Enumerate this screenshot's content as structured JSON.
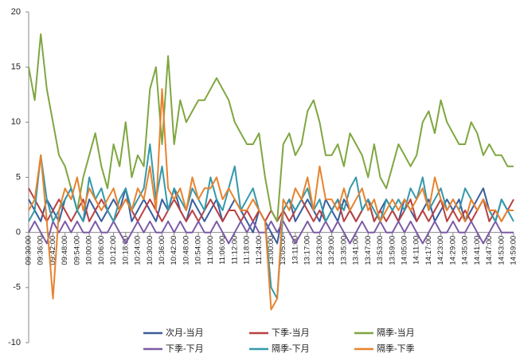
{
  "chart_data": {
    "type": "line",
    "categories": [
      "09:30:00",
      null,
      "09:36:00",
      null,
      "09:42:00",
      null,
      "09:48:00",
      null,
      "09:54:00",
      null,
      "10:00:00",
      null,
      "10:06:00",
      null,
      "10:12:00",
      null,
      "10:18:00",
      null,
      "10:24:00",
      null,
      "10:30:00",
      null,
      "10:36:00",
      null,
      "10:42:00",
      null,
      "10:48:00",
      null,
      "10:54:00",
      null,
      "11:00:00",
      null,
      "11:06:00",
      null,
      "11:12:00",
      null,
      "11:18:00",
      null,
      "11:24:00",
      null,
      "13:00:00",
      null,
      "13:05:00",
      null,
      "13:11:00",
      null,
      "13:17:00",
      null,
      "13:23:00",
      null,
      "13:29:00",
      null,
      "13:35:00",
      null,
      "13:41:00",
      null,
      "13:47:00",
      null,
      "13:53:00",
      null,
      "13:59:00",
      null,
      "14:05:00",
      null,
      "14:11:00",
      null,
      "14:17:00",
      null,
      "14:23:00",
      null,
      "14:29:00",
      null,
      "14:35:00",
      null,
      "14:41:00",
      null,
      "14:47:00",
      null,
      "14:53:00",
      null,
      "14:59:00"
    ],
    "series": [
      {
        "name": "次月-当月",
        "color": "#3a5d9c",
        "values": [
          3,
          2,
          1,
          3,
          2,
          1,
          3,
          4,
          2,
          1,
          3,
          2,
          1,
          2,
          3,
          2,
          4,
          1,
          2,
          3,
          2,
          1,
          3,
          2,
          4,
          2,
          1,
          3,
          2,
          1,
          2,
          3,
          1,
          2,
          3,
          2,
          1,
          0,
          2,
          1,
          0,
          -1,
          2,
          3,
          1,
          2,
          3,
          2,
          1,
          3,
          2,
          1,
          3,
          2,
          1,
          2,
          3,
          1,
          2,
          3,
          2,
          1,
          3,
          2,
          1,
          2,
          3,
          1,
          2,
          3,
          2,
          3,
          1,
          2,
          3,
          4,
          2,
          1,
          3,
          2,
          2
        ]
      },
      {
        "name": "下季-当月",
        "color": "#b94040",
        "values": [
          4,
          3,
          2,
          1,
          2,
          3,
          2,
          1,
          2,
          3,
          1,
          2,
          3,
          2,
          1,
          2,
          3,
          2,
          1,
          2,
          3,
          2,
          1,
          2,
          3,
          2,
          1,
          2,
          1,
          2,
          3,
          2,
          1,
          2,
          2,
          1,
          2,
          1,
          2,
          1,
          2,
          1,
          2,
          1,
          2,
          3,
          2,
          1,
          2,
          1,
          2,
          3,
          1,
          2,
          1,
          2,
          3,
          1,
          2,
          1,
          2,
          1,
          2,
          3,
          1,
          2,
          1,
          2,
          3,
          1,
          2,
          1,
          2,
          1,
          2,
          3,
          1,
          2,
          1,
          2,
          3
        ]
      },
      {
        "name": "隔季-当月",
        "color": "#7fa640",
        "values": [
          15,
          12,
          18,
          13,
          10,
          7,
          6,
          4,
          2,
          5,
          7,
          9,
          6,
          4,
          8,
          6,
          10,
          5,
          7,
          6,
          13,
          15,
          8,
          16,
          8,
          12,
          10,
          11,
          12,
          12,
          13,
          14,
          13,
          12,
          10,
          9,
          8,
          8,
          9,
          5,
          2,
          1,
          8,
          9,
          7,
          8,
          11,
          12,
          10,
          7,
          7,
          8,
          6,
          9,
          8,
          7,
          5,
          8,
          5,
          4,
          6,
          8,
          7,
          6,
          7,
          10,
          11,
          9,
          12,
          10,
          9,
          8,
          8,
          10,
          9,
          7,
          8,
          7,
          7,
          6,
          6
        ]
      },
      {
        "name": "下季-下月",
        "color": "#7b5aa6",
        "values": [
          0,
          1,
          0,
          -1,
          1,
          0,
          1,
          0,
          1,
          0,
          0,
          1,
          0,
          0,
          1,
          0,
          -1,
          0,
          1,
          0,
          1,
          0,
          0,
          1,
          0,
          1,
          0,
          0,
          1,
          0,
          0,
          1,
          0,
          -1,
          0,
          1,
          0,
          1,
          0,
          0,
          1,
          0,
          1,
          0,
          -1,
          0,
          1,
          0,
          0,
          1,
          0,
          1,
          0,
          -1,
          0,
          1,
          0,
          0,
          1,
          0,
          0,
          1,
          0,
          1,
          0,
          -1,
          0,
          1,
          0,
          0,
          1,
          0,
          0,
          1,
          0,
          -1,
          0,
          1,
          0,
          0,
          0
        ]
      },
      {
        "name": "隔季-下月",
        "color": "#3399aa",
        "values": [
          1,
          2,
          7,
          3,
          1,
          2,
          3,
          4,
          2,
          1,
          5,
          3,
          4,
          2,
          1,
          3,
          4,
          2,
          3,
          4,
          8,
          3,
          6,
          2,
          4,
          3,
          2,
          4,
          3,
          2,
          5,
          3,
          2,
          4,
          6,
          2,
          3,
          4,
          2,
          1,
          -5,
          -6,
          2,
          3,
          2,
          3,
          4,
          2,
          3,
          1,
          2,
          3,
          2,
          4,
          5,
          2,
          3,
          2,
          1,
          3,
          2,
          3,
          2,
          4,
          3,
          5,
          2,
          3,
          4,
          2,
          3,
          2,
          4,
          3,
          2,
          3,
          2,
          1,
          3,
          2,
          1
        ]
      },
      {
        "name": "隔季-下季",
        "color": "#e8822e",
        "values": [
          2,
          3,
          7,
          1,
          -6,
          2,
          4,
          3,
          5,
          2,
          4,
          3,
          2,
          3,
          4,
          2,
          3,
          2,
          4,
          3,
          6,
          2,
          13,
          4,
          3,
          4,
          2,
          5,
          3,
          4,
          4,
          5,
          3,
          4,
          3,
          2,
          2,
          3,
          2,
          1,
          -7,
          -6,
          3,
          2,
          4,
          3,
          5,
          2,
          6,
          3,
          3,
          2,
          4,
          2,
          3,
          4,
          2,
          3,
          1,
          2,
          3,
          2,
          3,
          2,
          3,
          4,
          2,
          5,
          3,
          2,
          3,
          2,
          1,
          3,
          2,
          3,
          2,
          2,
          1,
          2,
          2
        ]
      }
    ],
    "ylim": [
      -10,
      20
    ],
    "yticks": [
      -10,
      -5,
      0,
      5,
      10,
      15,
      20
    ],
    "legend": "bottom"
  }
}
